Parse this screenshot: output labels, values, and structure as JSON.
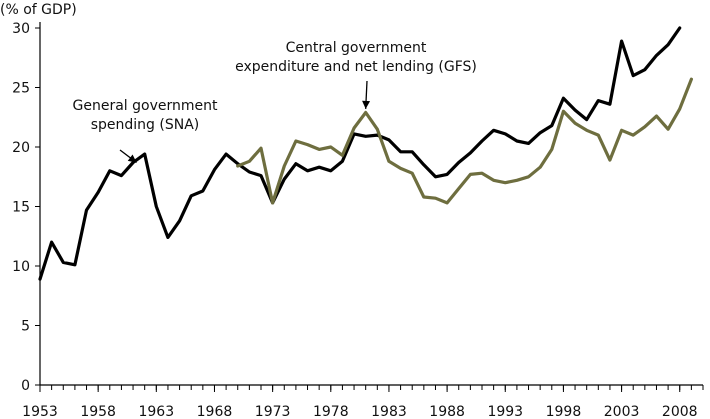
{
  "chart_data": {
    "type": "line",
    "title": "",
    "xlabel": "",
    "ylabel": "(% of GDP)",
    "xlim": [
      1953,
      2010
    ],
    "ylim": [
      0,
      30
    ],
    "grid": false,
    "x_ticks": [
      1953,
      1958,
      1963,
      1968,
      1973,
      1978,
      1983,
      1988,
      1993,
      1998,
      2003,
      2008
    ],
    "y_ticks": [
      0,
      5,
      10,
      15,
      20,
      25,
      30
    ],
    "x": [
      1953,
      1954,
      1955,
      1956,
      1957,
      1958,
      1959,
      1960,
      1961,
      1962,
      1963,
      1964,
      1965,
      1966,
      1967,
      1968,
      1969,
      1970,
      1971,
      1972,
      1973,
      1974,
      1975,
      1976,
      1977,
      1978,
      1979,
      1980,
      1981,
      1982,
      1983,
      1984,
      1985,
      1986,
      1987,
      1988,
      1989,
      1990,
      1991,
      1992,
      1993,
      1994,
      1995,
      1996,
      1997,
      1998,
      1999,
      2000,
      2001,
      2002,
      2003,
      2004,
      2005,
      2006,
      2007,
      2008,
      2009,
      2010
    ],
    "series": [
      {
        "color": "#000000",
        "values": [
          8.9,
          12.0,
          10.3,
          10.1,
          14.7,
          16.2,
          18.0,
          17.6,
          18.7,
          19.4,
          15.0,
          12.4,
          13.8,
          15.9,
          16.3,
          18.1,
          19.4,
          18.6,
          17.9,
          17.6,
          15.3,
          17.3,
          18.6,
          18.0,
          18.3,
          18.0,
          18.8,
          21.1,
          20.9,
          21.0,
          20.6,
          19.6,
          19.6,
          18.5,
          17.5,
          17.7,
          18.7,
          19.5,
          20.5,
          21.4,
          21.1,
          20.5,
          20.3,
          21.2,
          21.8,
          24.1,
          23.1,
          22.3,
          23.9,
          23.6,
          28.9,
          26.0,
          26.5,
          27.7,
          28.6,
          30.0,
          null,
          null
        ]
      },
      {
        "color": "#6e6e3f",
        "values": [
          null,
          null,
          null,
          null,
          null,
          null,
          null,
          null,
          null,
          null,
          null,
          null,
          null,
          null,
          null,
          null,
          null,
          18.4,
          18.8,
          19.9,
          15.3,
          18.4,
          20.5,
          20.2,
          19.8,
          20.0,
          19.3,
          21.6,
          22.9,
          21.5,
          18.8,
          18.2,
          17.8,
          15.8,
          15.7,
          15.3,
          16.5,
          17.7,
          17.8,
          17.2,
          17.0,
          17.2,
          17.5,
          18.3,
          19.8,
          23.0,
          22.0,
          21.4,
          21.0,
          18.9,
          21.4,
          21.0,
          21.7,
          22.6,
          21.5,
          23.2,
          25.7,
          null
        ]
      }
    ],
    "annotations": [
      {
        "lines": [
          "General government",
          "spending (SNA)"
        ],
        "target_series": 0,
        "target_x": 1961.3,
        "target_y": 18.7
      },
      {
        "lines": [
          "Central government",
          "expenditure and net lending (GFS)"
        ],
        "target_series": 1,
        "target_x": 1981.0,
        "target_y": 23.2
      }
    ]
  }
}
